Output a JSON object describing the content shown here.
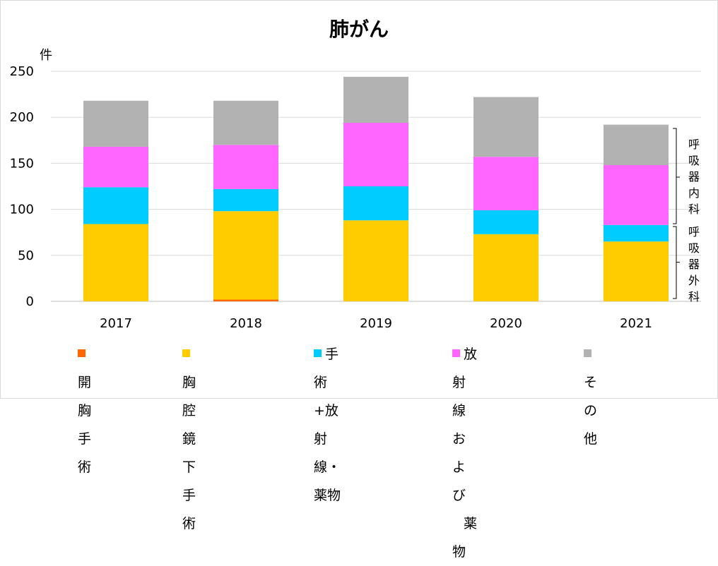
{
  "chart_data": {
    "type": "bar",
    "stacked": true,
    "title": "肺がん",
    "ylabel": "件",
    "ylim": [
      0,
      250
    ],
    "yticks": [
      0,
      50,
      100,
      150,
      200,
      250
    ],
    "grid": true,
    "legend_position": "bottom",
    "categories": [
      "2017",
      "2018",
      "2019",
      "2020",
      "2021"
    ],
    "series": [
      {
        "name": "開胸手術",
        "color": "#ff6600",
        "values": [
          0,
          2,
          0,
          0,
          0
        ]
      },
      {
        "name": "胸腔鏡下手術",
        "color": "#ffcc00",
        "values": [
          84,
          96,
          88,
          73,
          65
        ]
      },
      {
        "name": "手術+放射線・薬物",
        "color": "#00ccff",
        "values": [
          40,
          24,
          37,
          26,
          18
        ]
      },
      {
        "name": "放射線および薬物",
        "color": "#ff66ff",
        "values": [
          44,
          48,
          69,
          58,
          65
        ]
      },
      {
        "name": "その他",
        "color": "#b2b2b2",
        "values": [
          50,
          48,
          50,
          65,
          44
        ]
      }
    ],
    "annotations": {
      "upper": "呼吸器内科",
      "lower": "呼吸器外科"
    }
  },
  "legend": {
    "items": [
      {
        "text": "開胸手術",
        "color": "#ff6600"
      },
      {
        "text": "胸腔鏡下手術",
        "color": "#ffcc00"
      },
      {
        "line1": "手術+放射線・",
        "line2": "薬物",
        "color": "#00ccff"
      },
      {
        "line1": "放射線および",
        "line2": "薬物",
        "color": "#ff66ff"
      },
      {
        "text": "その他",
        "color": "#b2b2b2"
      }
    ]
  }
}
